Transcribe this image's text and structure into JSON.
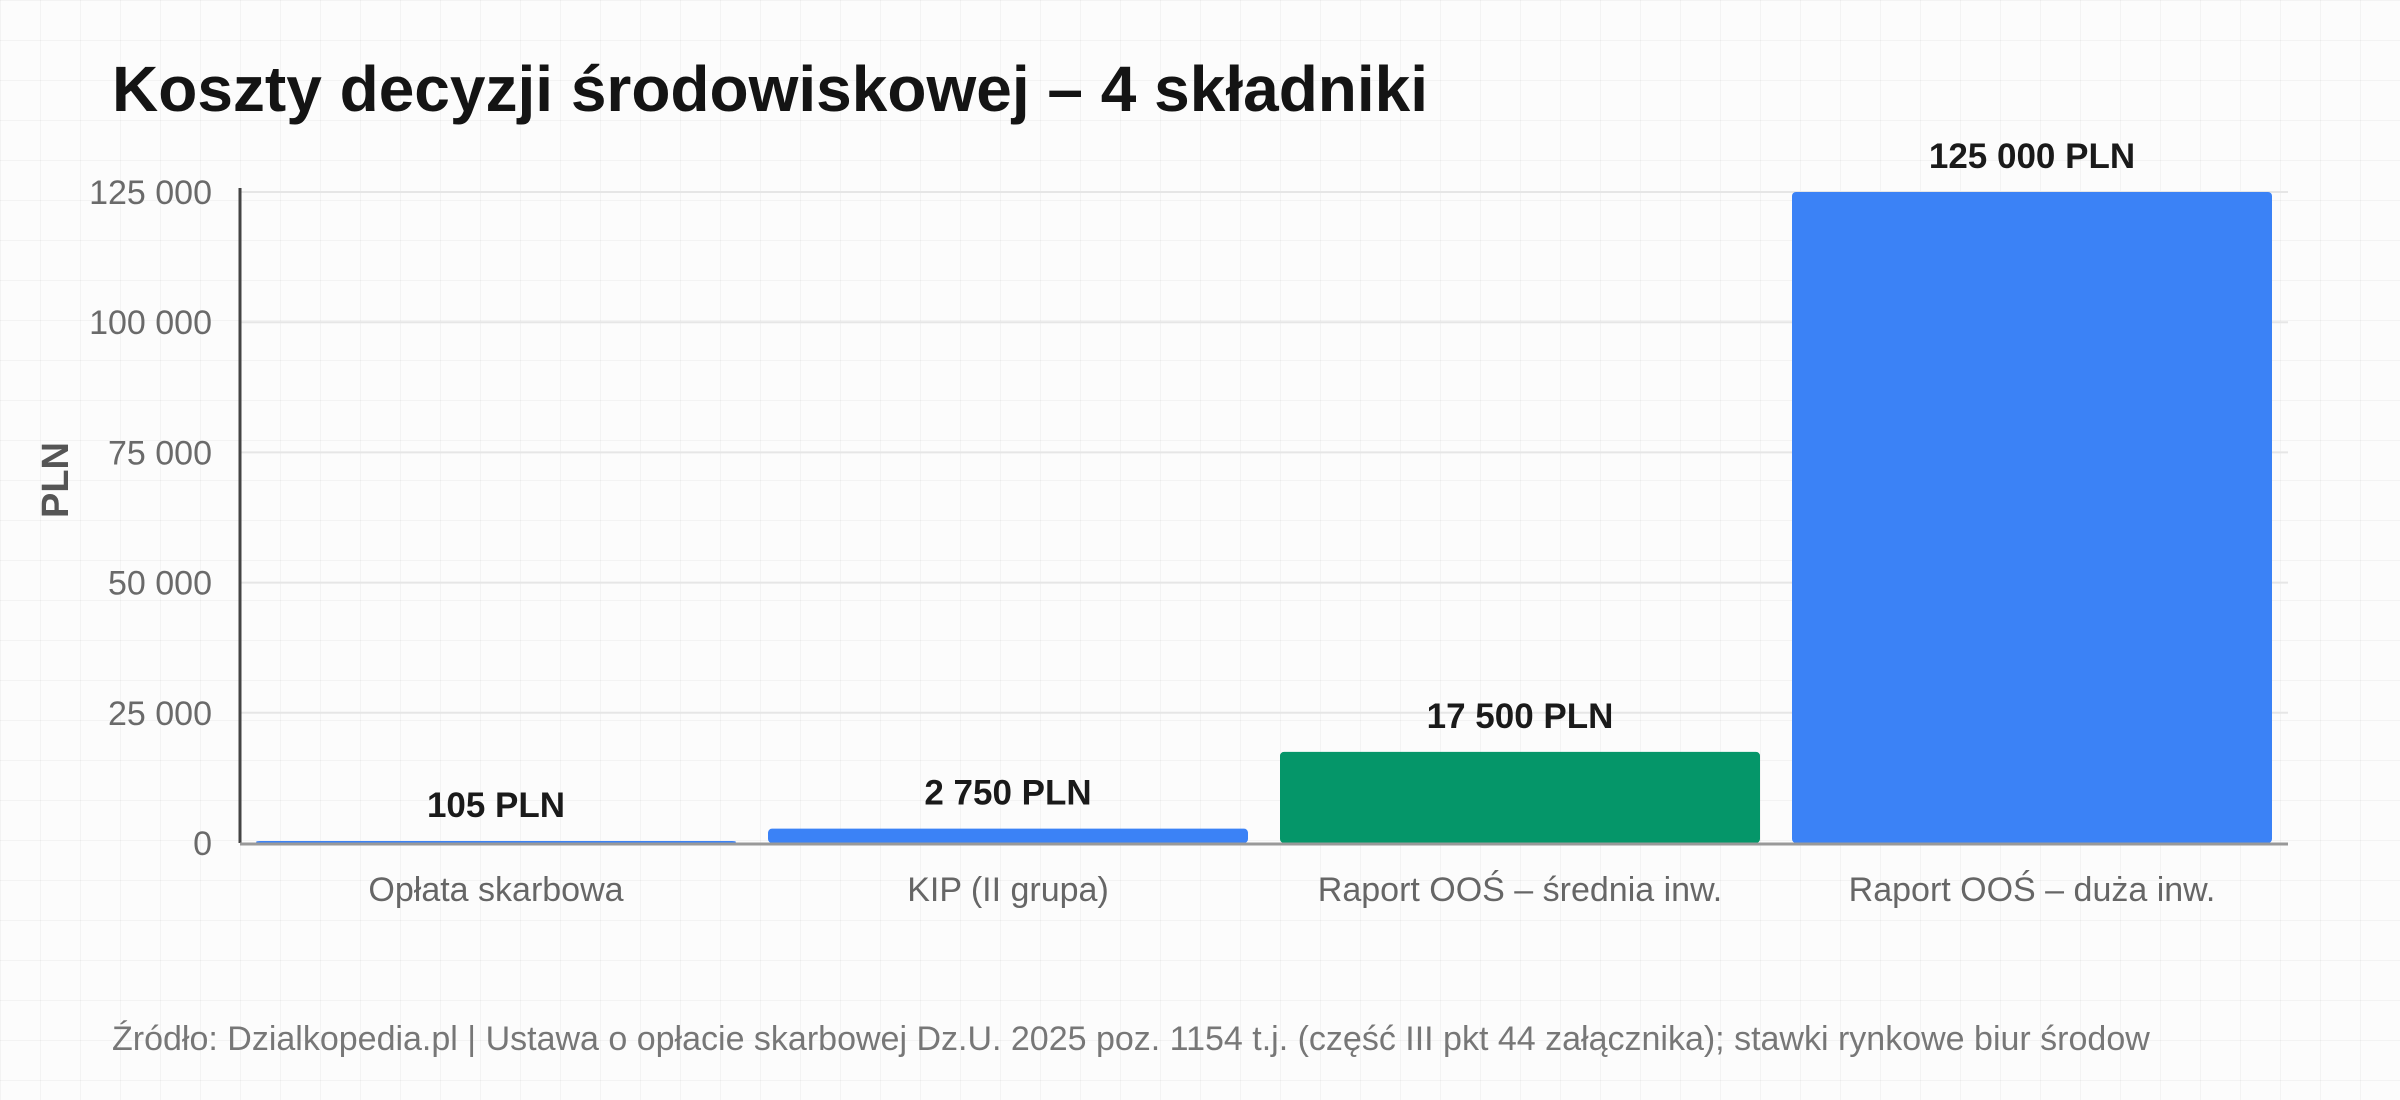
{
  "chart_data": {
    "type": "bar",
    "title": "Koszty decyzji środowiskowej – 4 składniki",
    "ylabel": "PLN",
    "xlabel": "",
    "categories": [
      "Opłata skarbowa",
      "KIP (II grupa)",
      "Raport OOŚ – średnia inw.",
      "Raport OOŚ – duża inw."
    ],
    "values": [
      105,
      2750,
      17500,
      125000
    ],
    "value_labels": [
      "105 PLN",
      "2 750 PLN",
      "17 500 PLN",
      "125 000 PLN"
    ],
    "bar_colors": [
      "#3b82f6",
      "#3b82f6",
      "#059669",
      "#3b82f6"
    ],
    "ylim": [
      0,
      125000
    ],
    "yticks": [
      0,
      25000,
      50000,
      75000,
      100000,
      125000
    ],
    "ytick_labels": [
      "0",
      "25 000",
      "50 000",
      "75 000",
      "100 000",
      "125 000"
    ],
    "grid": true,
    "legend": "none"
  },
  "source": "Źródło: Dzialkopedia.pl | Ustawa o opłacie skarbowej Dz.U. 2025 poz. 1154 t.j. (część III pkt 44 załącznika); stawki rynkowe biur środow"
}
